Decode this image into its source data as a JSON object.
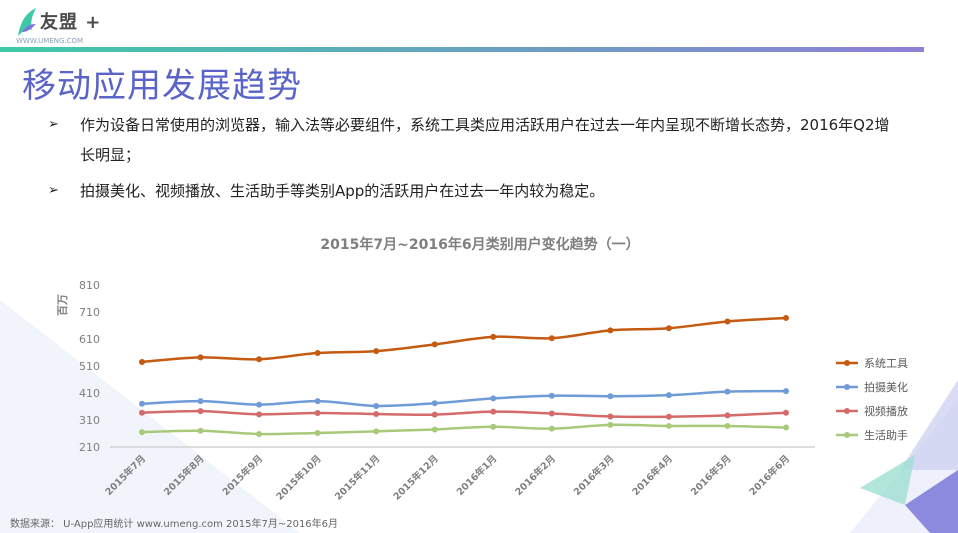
{
  "header": {
    "logo_text": "友盟 +",
    "logo_sub": "WWW.UMENG.COM"
  },
  "page": {
    "title": "移动应用发展趋势",
    "bullets": [
      "作为设备日常使用的浏览器，输入法等必要组件，系统工具类应用活跃用户在过去一年内呈现不断增长态势，2016年Q2增长明显；",
      "拍摄美化、视频播放、生活助手等类别App的活跃用户在过去一年内较为稳定。"
    ],
    "bullet_mark": "➢"
  },
  "source": "数据来源： U-App应用统计  www.umeng.com 2015年7月~2016年6月",
  "colors": {
    "brand": "#5a64c8",
    "topbar_start": "#3ec9a7",
    "topbar_end": "#8f7fd8"
  },
  "chart_data": {
    "type": "line",
    "title": "2015年7月~2016年6月类别用户变化趋势（一）",
    "ylabel": "百万",
    "ylim": [
      210,
      810
    ],
    "yticks": [
      210,
      310,
      410,
      510,
      610,
      710,
      810
    ],
    "categories": [
      "2015年7月",
      "2015年8月",
      "2015年9月",
      "2015年10月",
      "2015年11月",
      "2015年12月",
      "2016年1月",
      "2016年2月",
      "2016年3月",
      "2016年4月",
      "2016年5月",
      "2016年6月"
    ],
    "legend_position": "right",
    "grid": false,
    "series": [
      {
        "name": "系统工具",
        "color": "#c55a11",
        "values": [
          525,
          542,
          535,
          558,
          565,
          590,
          618,
          613,
          642,
          650,
          675,
          688
        ]
      },
      {
        "name": "拍摄美化",
        "color": "#6f9bd6",
        "values": [
          370,
          380,
          367,
          380,
          362,
          372,
          390,
          400,
          398,
          402,
          415,
          417
        ]
      },
      {
        "name": "视频播放",
        "color": "#d46a6a",
        "values": [
          337,
          343,
          331,
          336,
          332,
          330,
          341,
          334,
          323,
          322,
          327,
          337
        ]
      },
      {
        "name": "生活助手",
        "color": "#a9c97a",
        "values": [
          265,
          270,
          258,
          262,
          268,
          275,
          285,
          278,
          292,
          288,
          288,
          282
        ]
      }
    ]
  }
}
